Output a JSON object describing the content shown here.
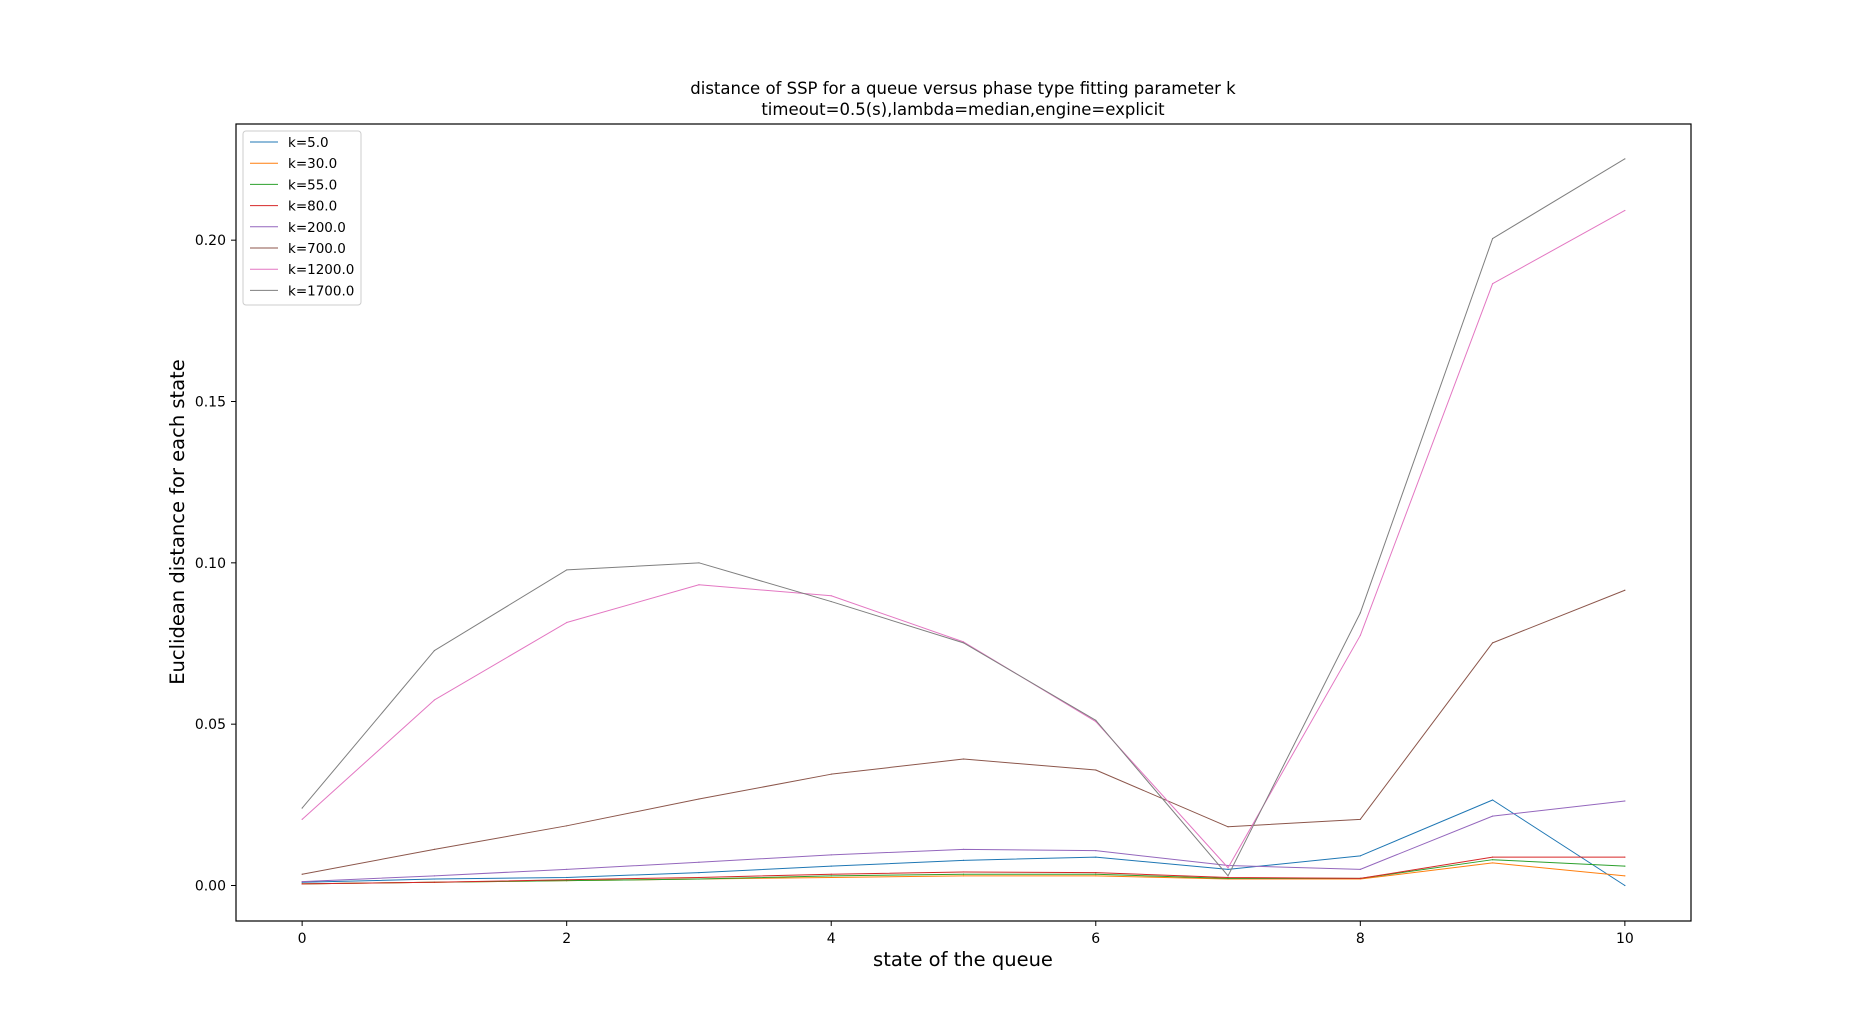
{
  "chart_data": {
    "type": "line",
    "title": "distance of SSP for a queue versus phase type fitting parameter k",
    "subtitle": "timeout=0.5(s),lambda=median,engine=explicit",
    "xlabel": "state of the queue",
    "ylabel": "Euclidean distance for each state",
    "xlim": [
      -0.5,
      10.5
    ],
    "ylim": [
      -0.011,
      0.236
    ],
    "xticks": [
      0,
      2,
      4,
      6,
      8,
      10
    ],
    "yticks": [
      0.0,
      0.05,
      0.1,
      0.15,
      0.2
    ],
    "ytick_labels": [
      "0.00",
      "0.05",
      "0.10",
      "0.15",
      "0.20"
    ],
    "grid": false,
    "legend_position": "top-left",
    "x": [
      0,
      1,
      2,
      3,
      4,
      5,
      6,
      7,
      8,
      9,
      10
    ],
    "series": [
      {
        "name": "k=5.0",
        "color": "#1f77b4",
        "values": [
          0.001,
          0.002,
          0.0025,
          0.004,
          0.006,
          0.0078,
          0.0088,
          0.005,
          0.0092,
          0.0265,
          0.0
        ]
      },
      {
        "name": "k=30.0",
        "color": "#ff7f0e",
        "values": [
          0.0005,
          0.001,
          0.0015,
          0.002,
          0.0025,
          0.003,
          0.003,
          0.002,
          0.002,
          0.007,
          0.003
        ]
      },
      {
        "name": "k=55.0",
        "color": "#2ca02c",
        "values": [
          0.0005,
          0.001,
          0.0015,
          0.002,
          0.003,
          0.0035,
          0.0035,
          0.0022,
          0.0022,
          0.008,
          0.006
        ]
      },
      {
        "name": "k=80.0",
        "color": "#d62728",
        "values": [
          0.0005,
          0.001,
          0.0018,
          0.0025,
          0.0035,
          0.0042,
          0.004,
          0.0025,
          0.0022,
          0.0088,
          0.0088
        ]
      },
      {
        "name": "k=200.0",
        "color": "#9467bd",
        "values": [
          0.0012,
          0.003,
          0.005,
          0.0072,
          0.0095,
          0.0112,
          0.0108,
          0.0062,
          0.005,
          0.0215,
          0.0262
        ]
      },
      {
        "name": "k=700.0",
        "color": "#8c564b",
        "values": [
          0.0035,
          0.0112,
          0.0185,
          0.0268,
          0.0345,
          0.0392,
          0.0358,
          0.0182,
          0.0205,
          0.0752,
          0.0915
        ]
      },
      {
        "name": "k=1200.0",
        "color": "#e377c2",
        "values": [
          0.0205,
          0.0575,
          0.0815,
          0.0932,
          0.0898,
          0.0755,
          0.0508,
          0.0055,
          0.0775,
          0.1865,
          0.2092
        ]
      },
      {
        "name": "k=1700.0",
        "color": "#7f7f7f",
        "values": [
          0.024,
          0.0728,
          0.0978,
          0.1,
          0.088,
          0.0752,
          0.0512,
          0.003,
          0.0845,
          0.2005,
          0.2252
        ]
      }
    ]
  }
}
